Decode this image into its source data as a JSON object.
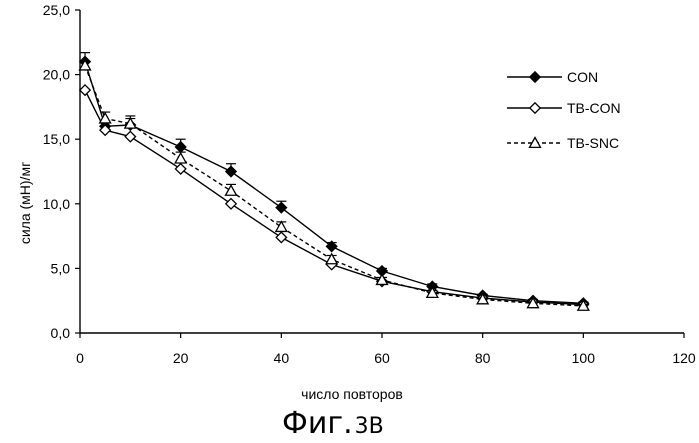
{
  "chart_data": {
    "type": "line",
    "title": "",
    "xlabel": "число повторов",
    "ylabel": "сила (мН)/мг",
    "xlim": [
      0,
      120
    ],
    "ylim": [
      0,
      25
    ],
    "x_ticks": [
      0,
      20,
      40,
      60,
      80,
      100,
      120
    ],
    "y_ticks": [
      0,
      5,
      10,
      15,
      20,
      25
    ],
    "x_tick_labels": [
      "0",
      "20",
      "40",
      "60",
      "80",
      "100",
      "120"
    ],
    "y_tick_labels": [
      "0,0",
      "5,0",
      "10,0",
      "15,0",
      "20,0",
      "25,0"
    ],
    "grid": false,
    "legend_position": "right",
    "series": [
      {
        "name": "CON",
        "marker": "diamond-filled",
        "line": "solid",
        "x": [
          1,
          5,
          10,
          20,
          30,
          40,
          50,
          60,
          70,
          80,
          90,
          100
        ],
        "y": [
          21.0,
          16.0,
          16.1,
          14.4,
          12.5,
          9.7,
          6.7,
          4.8,
          3.6,
          2.9,
          2.5,
          2.3
        ],
        "error": [
          0.7,
          0.4,
          0.5,
          0.6,
          0.6,
          0.5,
          0.3,
          0.2,
          0.2,
          0.1,
          0.1,
          0.1
        ]
      },
      {
        "name": "TB-CON",
        "marker": "diamond-open",
        "line": "solid",
        "x": [
          1,
          5,
          10,
          20,
          30,
          40,
          50,
          60,
          70,
          80,
          90,
          100
        ],
        "y": [
          18.8,
          15.7,
          15.2,
          12.7,
          10.0,
          7.4,
          5.3,
          4.0,
          3.2,
          2.7,
          2.4,
          2.2
        ],
        "error": [
          0,
          0,
          0,
          0,
          0,
          0,
          0,
          0,
          0,
          0,
          0,
          0
        ]
      },
      {
        "name": "TB-SNC",
        "marker": "triangle-open",
        "line": "dashed",
        "x": [
          1,
          5,
          10,
          20,
          30,
          40,
          50,
          60,
          70,
          80,
          90,
          100
        ],
        "y": [
          20.7,
          16.6,
          16.2,
          13.5,
          11.0,
          8.2,
          5.7,
          4.1,
          3.1,
          2.6,
          2.3,
          2.1
        ],
        "error": [
          0,
          0.5,
          0.6,
          0.5,
          0.5,
          0.4,
          0.3,
          0.2,
          0.2,
          0.1,
          0.1,
          0.1
        ]
      }
    ]
  },
  "caption": {
    "main": "Фиг.",
    "number": "3В"
  }
}
